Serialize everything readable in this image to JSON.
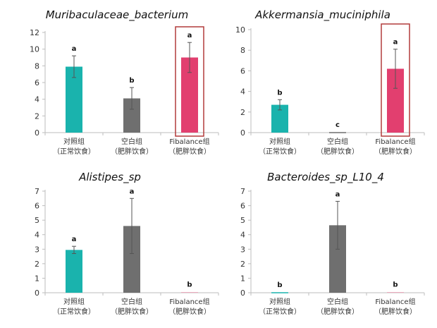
{
  "chart_data": [
    {
      "type": "bar",
      "title": "Muribaculaceae_bacterium",
      "categories": [
        [
          "对照组",
          "（正常饮食）"
        ],
        [
          "空白组",
          "（肥胖饮食）"
        ],
        [
          "Fibalance组",
          "（肥胖饮食）"
        ]
      ],
      "values": [
        7.9,
        4.1,
        9.0
      ],
      "errors": [
        1.3,
        1.3,
        1.8
      ],
      "sig_labels": [
        "a",
        "b",
        "a"
      ],
      "colors": [
        "#1ab3ad",
        "#6f6f6f",
        "#e23f6f"
      ],
      "highlight_index": 2,
      "highlight_color": "#b23b3b",
      "ylim": [
        0,
        12
      ],
      "yticks": [
        0,
        2,
        4,
        6,
        8,
        10,
        12
      ]
    },
    {
      "type": "bar",
      "title": "Akkermansia_muciniphila",
      "categories": [
        [
          "对照组",
          "（正常饮食）"
        ],
        [
          "空白组",
          "（肥胖饮食）"
        ],
        [
          "Fibalance组",
          "（肥胖饮食）"
        ]
      ],
      "values": [
        2.7,
        0,
        6.2
      ],
      "errors": [
        0.5,
        0,
        1.9
      ],
      "sig_labels": [
        "b",
        "c",
        "a"
      ],
      "colors": [
        "#1ab3ad",
        "#6f6f6f",
        "#e23f6f"
      ],
      "highlight_index": 2,
      "highlight_color": "#b23b3b",
      "ylim": [
        0,
        10
      ],
      "yticks": [
        0,
        2,
        4,
        6,
        8,
        10
      ]
    },
    {
      "type": "bar",
      "title": "Alistipes_sp",
      "categories": [
        [
          "对照组",
          "（正常饮食）"
        ],
        [
          "空白组",
          "（肥胖饮食）"
        ],
        [
          "Fibalance组",
          "（肥胖饮食）"
        ]
      ],
      "values": [
        2.95,
        4.6,
        0.02
      ],
      "errors": [
        0.25,
        1.9,
        0
      ],
      "sig_labels": [
        "a",
        "a",
        "b"
      ],
      "colors": [
        "#1ab3ad",
        "#6f6f6f",
        "#e23f6f"
      ],
      "highlight_index": null,
      "ylim": [
        0,
        7
      ],
      "yticks": [
        0,
        1,
        2,
        3,
        4,
        5,
        6,
        7
      ]
    },
    {
      "type": "bar",
      "title": "Bacteroides_sp_L10_4",
      "categories": [
        [
          "对照组",
          "（正常饮食）"
        ],
        [
          "空白组",
          "（肥胖饮食）"
        ],
        [
          "Fibalance组",
          "（肥胖饮食）"
        ]
      ],
      "values": [
        0,
        4.65,
        0.02
      ],
      "errors": [
        0,
        1.65,
        0
      ],
      "sig_labels": [
        "b",
        "a",
        "b"
      ],
      "colors": [
        "#1ab3ad",
        "#6f6f6f",
        "#e23f6f"
      ],
      "highlight_index": null,
      "ylim": [
        0,
        7
      ],
      "yticks": [
        0,
        1,
        2,
        3,
        4,
        5,
        6,
        7
      ]
    }
  ]
}
